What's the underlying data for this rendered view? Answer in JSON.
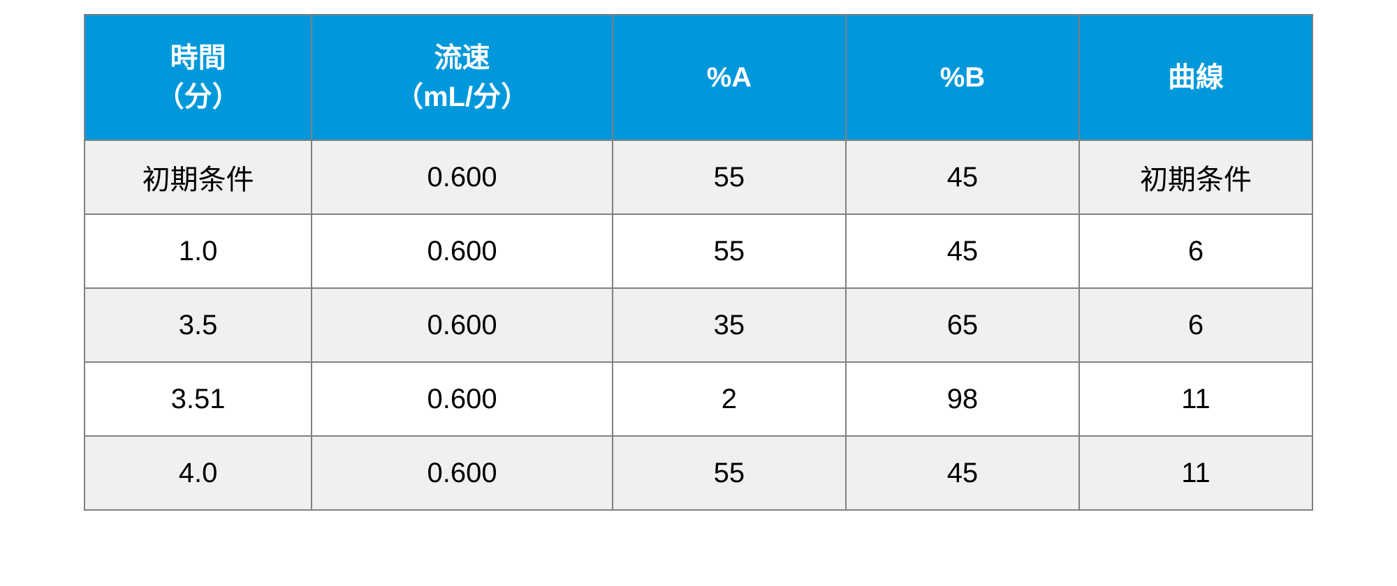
{
  "table": {
    "header_bg_color": "#0098db",
    "header_text_color": "#ffffff",
    "border_color": "#808080",
    "row_bg_color": "#ffffff",
    "alt_row_bg_color": "#f0f0f0",
    "text_color": "#000000",
    "header_fontsize": 40,
    "cell_fontsize": 40,
    "columns": [
      {
        "line1": "時間",
        "line2": "（分）"
      },
      {
        "line1": "流速",
        "line2": "（mL/分）"
      },
      {
        "line1": "%A",
        "line2": ""
      },
      {
        "line1": "%B",
        "line2": ""
      },
      {
        "line1": "曲線",
        "line2": ""
      }
    ],
    "rows": [
      {
        "time": "初期条件",
        "flow": "0.600",
        "a": "55",
        "b": "45",
        "curve": "初期条件",
        "alt": true
      },
      {
        "time": "1.0",
        "flow": "0.600",
        "a": "55",
        "b": "45",
        "curve": "6",
        "alt": false
      },
      {
        "time": "3.5",
        "flow": "0.600",
        "a": "35",
        "b": "65",
        "curve": "6",
        "alt": true
      },
      {
        "time": "3.51",
        "flow": "0.600",
        "a": "2",
        "b": "98",
        "curve": "11",
        "alt": false
      },
      {
        "time": "4.0",
        "flow": "0.600",
        "a": "55",
        "b": "45",
        "curve": "11",
        "alt": true
      }
    ]
  }
}
